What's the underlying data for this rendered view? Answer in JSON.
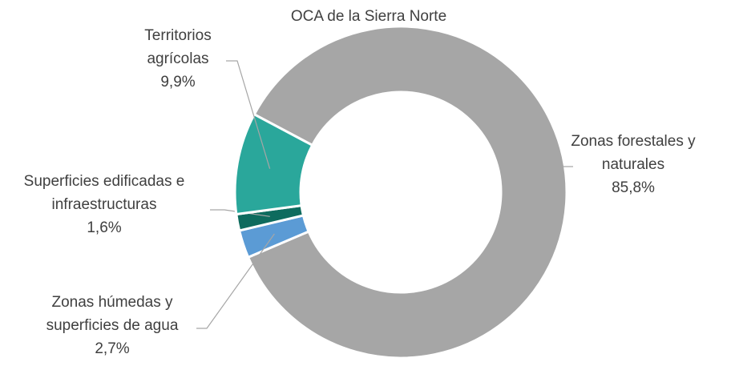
{
  "chart_data": {
    "type": "pie",
    "title": "OCA de la Sierra Norte",
    "categories": [
      "Zonas forestales y naturales",
      "Zonas húmedas y superficies de agua",
      "Superficies edificadas e infraestructuras",
      "Territorios agrícolas"
    ],
    "values": [
      85.8,
      2.7,
      1.6,
      9.9
    ],
    "value_labels": [
      "85,8%",
      "2,7%",
      "1,6%",
      "9,9%"
    ],
    "colors": [
      "#a6a6a6",
      "#5b9bd5",
      "#0e6b5e",
      "#2aa79b"
    ]
  }
}
